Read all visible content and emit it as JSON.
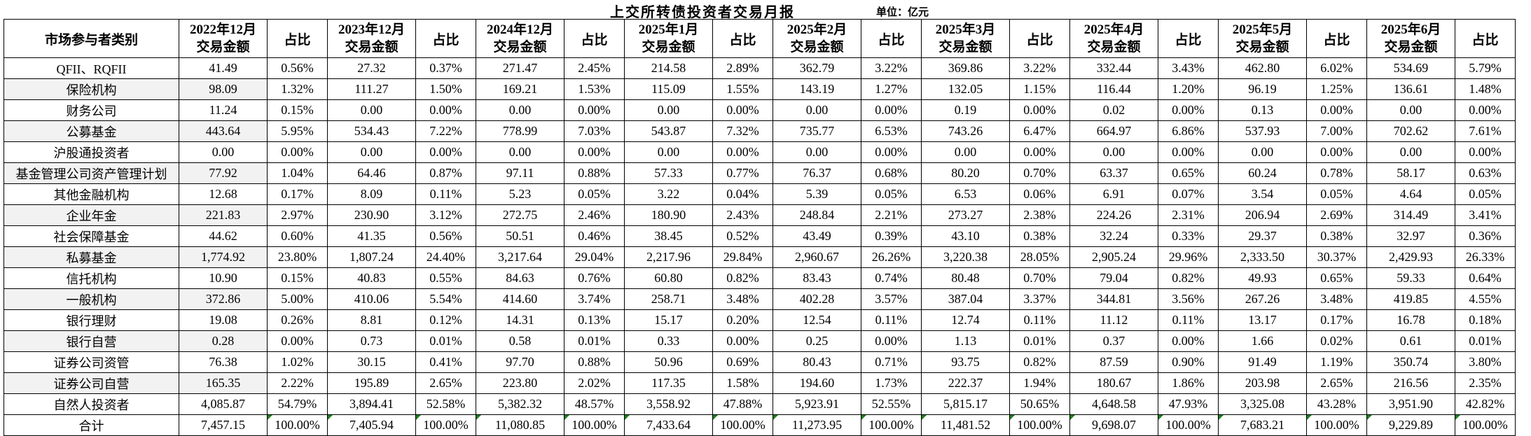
{
  "title": "上交所转债投资者交易月报",
  "unit_label": "单位：亿元",
  "colors": {
    "background": "#ffffff",
    "text": "#000000",
    "border": "#000000",
    "stripe": "#f2f2f2",
    "error_flag_green": "#1e7e1e"
  },
  "table": {
    "category_header": "市场参与者类别",
    "amount_header_suffix": "交易金额",
    "pct_header": "占比",
    "months": [
      "2022年12月",
      "2023年12月",
      "2024年12月",
      "2025年1月",
      "2025年2月",
      "2025年3月",
      "2025年4月",
      "2025年5月",
      "2025年6月"
    ],
    "rows": [
      {
        "category": "QFII、RQFII",
        "values": [
          [
            "41.49",
            "0.56%"
          ],
          [
            "27.32",
            "0.37%"
          ],
          [
            "271.47",
            "2.45%"
          ],
          [
            "214.58",
            "2.89%"
          ],
          [
            "362.79",
            "3.22%"
          ],
          [
            "369.86",
            "3.22%"
          ],
          [
            "332.44",
            "3.43%"
          ],
          [
            "462.80",
            "6.02%"
          ],
          [
            "534.69",
            "5.79%"
          ]
        ]
      },
      {
        "category": "保险机构",
        "values": [
          [
            "98.09",
            "1.32%"
          ],
          [
            "111.27",
            "1.50%"
          ],
          [
            "169.21",
            "1.53%"
          ],
          [
            "115.09",
            "1.55%"
          ],
          [
            "143.19",
            "1.27%"
          ],
          [
            "132.05",
            "1.15%"
          ],
          [
            "116.44",
            "1.20%"
          ],
          [
            "96.19",
            "1.25%"
          ],
          [
            "136.61",
            "1.48%"
          ]
        ]
      },
      {
        "category": "财务公司",
        "values": [
          [
            "11.24",
            "0.15%"
          ],
          [
            "0.00",
            "0.00%"
          ],
          [
            "0.00",
            "0.00%"
          ],
          [
            "0.00",
            "0.00%"
          ],
          [
            "0.00",
            "0.00%"
          ],
          [
            "0.19",
            "0.00%"
          ],
          [
            "0.02",
            "0.00%"
          ],
          [
            "0.13",
            "0.00%"
          ],
          [
            "0.00",
            "0.00%"
          ]
        ]
      },
      {
        "category": "公募基金",
        "values": [
          [
            "443.64",
            "5.95%"
          ],
          [
            "534.43",
            "7.22%"
          ],
          [
            "778.99",
            "7.03%"
          ],
          [
            "543.87",
            "7.32%"
          ],
          [
            "735.77",
            "6.53%"
          ],
          [
            "743.26",
            "6.47%"
          ],
          [
            "664.97",
            "6.86%"
          ],
          [
            "537.93",
            "7.00%"
          ],
          [
            "702.62",
            "7.61%"
          ]
        ]
      },
      {
        "category": "沪股通投资者",
        "values": [
          [
            "0.00",
            "0.00%"
          ],
          [
            "0.00",
            "0.00%"
          ],
          [
            "0.00",
            "0.00%"
          ],
          [
            "0.00",
            "0.00%"
          ],
          [
            "0.00",
            "0.00%"
          ],
          [
            "0.00",
            "0.00%"
          ],
          [
            "0.00",
            "0.00%"
          ],
          [
            "0.00",
            "0.00%"
          ],
          [
            "0.00",
            "0.00%"
          ]
        ]
      },
      {
        "category": "基金管理公司资产管理计划",
        "values": [
          [
            "77.92",
            "1.04%"
          ],
          [
            "64.46",
            "0.87%"
          ],
          [
            "97.11",
            "0.88%"
          ],
          [
            "57.33",
            "0.77%"
          ],
          [
            "76.37",
            "0.68%"
          ],
          [
            "80.20",
            "0.70%"
          ],
          [
            "63.37",
            "0.65%"
          ],
          [
            "60.24",
            "0.78%"
          ],
          [
            "58.17",
            "0.63%"
          ]
        ]
      },
      {
        "category": "其他金融机构",
        "values": [
          [
            "12.68",
            "0.17%"
          ],
          [
            "8.09",
            "0.11%"
          ],
          [
            "5.23",
            "0.05%"
          ],
          [
            "3.22",
            "0.04%"
          ],
          [
            "5.39",
            "0.05%"
          ],
          [
            "6.53",
            "0.06%"
          ],
          [
            "6.91",
            "0.07%"
          ],
          [
            "3.54",
            "0.05%"
          ],
          [
            "4.64",
            "0.05%"
          ]
        ]
      },
      {
        "category": "企业年金",
        "values": [
          [
            "221.83",
            "2.97%"
          ],
          [
            "230.90",
            "3.12%"
          ],
          [
            "272.75",
            "2.46%"
          ],
          [
            "180.90",
            "2.43%"
          ],
          [
            "248.84",
            "2.21%"
          ],
          [
            "273.27",
            "2.38%"
          ],
          [
            "224.26",
            "2.31%"
          ],
          [
            "206.94",
            "2.69%"
          ],
          [
            "314.49",
            "3.41%"
          ]
        ]
      },
      {
        "category": "社会保障基金",
        "values": [
          [
            "44.62",
            "0.60%"
          ],
          [
            "41.35",
            "0.56%"
          ],
          [
            "50.51",
            "0.46%"
          ],
          [
            "38.45",
            "0.52%"
          ],
          [
            "43.49",
            "0.39%"
          ],
          [
            "43.10",
            "0.38%"
          ],
          [
            "32.24",
            "0.33%"
          ],
          [
            "29.37",
            "0.38%"
          ],
          [
            "32.97",
            "0.36%"
          ]
        ]
      },
      {
        "category": "私募基金",
        "values": [
          [
            "1,774.92",
            "23.80%"
          ],
          [
            "1,807.24",
            "24.40%"
          ],
          [
            "3,217.64",
            "29.04%"
          ],
          [
            "2,217.96",
            "29.84%"
          ],
          [
            "2,960.67",
            "26.26%"
          ],
          [
            "3,220.38",
            "28.05%"
          ],
          [
            "2,905.24",
            "29.96%"
          ],
          [
            "2,333.50",
            "30.37%"
          ],
          [
            "2,429.93",
            "26.33%"
          ]
        ]
      },
      {
        "category": "信托机构",
        "values": [
          [
            "10.90",
            "0.15%"
          ],
          [
            "40.83",
            "0.55%"
          ],
          [
            "84.63",
            "0.76%"
          ],
          [
            "60.80",
            "0.82%"
          ],
          [
            "83.43",
            "0.74%"
          ],
          [
            "80.48",
            "0.70%"
          ],
          [
            "79.04",
            "0.82%"
          ],
          [
            "49.93",
            "0.65%"
          ],
          [
            "59.33",
            "0.64%"
          ]
        ]
      },
      {
        "category": "一般机构",
        "values": [
          [
            "372.86",
            "5.00%"
          ],
          [
            "410.06",
            "5.54%"
          ],
          [
            "414.60",
            "3.74%"
          ],
          [
            "258.71",
            "3.48%"
          ],
          [
            "402.28",
            "3.57%"
          ],
          [
            "387.04",
            "3.37%"
          ],
          [
            "344.81",
            "3.56%"
          ],
          [
            "267.26",
            "3.48%"
          ],
          [
            "419.85",
            "4.55%"
          ]
        ]
      },
      {
        "category": "银行理财",
        "values": [
          [
            "19.08",
            "0.26%"
          ],
          [
            "8.81",
            "0.12%"
          ],
          [
            "14.31",
            "0.13%"
          ],
          [
            "15.17",
            "0.20%"
          ],
          [
            "12.54",
            "0.11%"
          ],
          [
            "12.74",
            "0.11%"
          ],
          [
            "11.12",
            "0.11%"
          ],
          [
            "13.17",
            "0.17%"
          ],
          [
            "16.78",
            "0.18%"
          ]
        ]
      },
      {
        "category": "银行自营",
        "values": [
          [
            "0.28",
            "0.00%"
          ],
          [
            "0.73",
            "0.01%"
          ],
          [
            "0.58",
            "0.01%"
          ],
          [
            "0.33",
            "0.00%"
          ],
          [
            "0.25",
            "0.00%"
          ],
          [
            "1.13",
            "0.01%"
          ],
          [
            "0.37",
            "0.00%"
          ],
          [
            "1.66",
            "0.02%"
          ],
          [
            "0.61",
            "0.01%"
          ]
        ]
      },
      {
        "category": "证券公司资管",
        "values": [
          [
            "76.38",
            "1.02%"
          ],
          [
            "30.15",
            "0.41%"
          ],
          [
            "97.70",
            "0.88%"
          ],
          [
            "50.96",
            "0.69%"
          ],
          [
            "80.43",
            "0.71%"
          ],
          [
            "93.75",
            "0.82%"
          ],
          [
            "87.59",
            "0.90%"
          ],
          [
            "91.49",
            "1.19%"
          ],
          [
            "350.74",
            "3.80%"
          ]
        ]
      },
      {
        "category": "证券公司自营",
        "values": [
          [
            "165.35",
            "2.22%"
          ],
          [
            "195.89",
            "2.65%"
          ],
          [
            "223.80",
            "2.02%"
          ],
          [
            "117.35",
            "1.58%"
          ],
          [
            "194.60",
            "1.73%"
          ],
          [
            "222.37",
            "1.94%"
          ],
          [
            "180.67",
            "1.86%"
          ],
          [
            "203.98",
            "2.65%"
          ],
          [
            "216.56",
            "2.35%"
          ]
        ]
      },
      {
        "category": "自然人投资者",
        "values": [
          [
            "4,085.87",
            "54.79%"
          ],
          [
            "3,894.41",
            "52.58%"
          ],
          [
            "5,382.32",
            "48.57%"
          ],
          [
            "3,558.92",
            "47.88%"
          ],
          [
            "5,923.91",
            "52.55%"
          ],
          [
            "5,815.17",
            "50.65%"
          ],
          [
            "4,648.58",
            "47.93%"
          ],
          [
            "3,325.08",
            "43.28%"
          ],
          [
            "3,951.90",
            "42.82%"
          ]
        ]
      },
      {
        "category": "合计",
        "values": [
          [
            "7,457.15",
            "100.00%"
          ],
          [
            "7,405.94",
            "100.00%"
          ],
          [
            "11,080.85",
            "100.00%"
          ],
          [
            "7,433.64",
            "100.00%"
          ],
          [
            "11,273.95",
            "100.00%"
          ],
          [
            "11,481.52",
            "100.00%"
          ],
          [
            "9,698.07",
            "100.00%"
          ],
          [
            "7,683.21",
            "100.00%"
          ],
          [
            "9,229.89",
            "100.00%"
          ]
        ]
      }
    ]
  }
}
